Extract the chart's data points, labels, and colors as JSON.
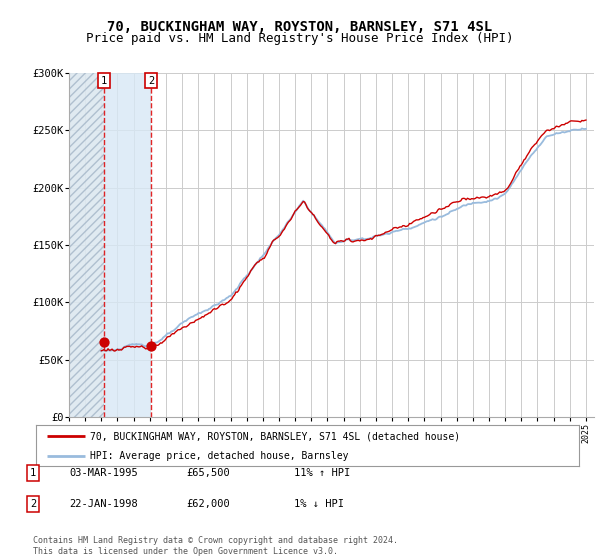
{
  "title": "70, BUCKINGHAM WAY, ROYSTON, BARNSLEY, S71 4SL",
  "subtitle": "Price paid vs. HM Land Registry's House Price Index (HPI)",
  "ylim": [
    0,
    300000
  ],
  "yticks": [
    0,
    50000,
    100000,
    150000,
    200000,
    250000,
    300000
  ],
  "ytick_labels": [
    "£0",
    "£50K",
    "£100K",
    "£150K",
    "£200K",
    "£250K",
    "£300K"
  ],
  "xlim_start": 1993.0,
  "xlim_end": 2025.5,
  "sale1": {
    "date_num": 1995.17,
    "price": 65500,
    "label": "1",
    "hpi_pct": "11% ↑ HPI",
    "date_str": "03-MAR-1995"
  },
  "sale2": {
    "date_num": 1998.07,
    "price": 62000,
    "label": "2",
    "hpi_pct": "1% ↓ HPI",
    "date_str": "22-JAN-1998"
  },
  "legend_line1": "70, BUCKINGHAM WAY, ROYSTON, BARNSLEY, S71 4SL (detached house)",
  "legend_line2": "HPI: Average price, detached house, Barnsley",
  "footer": "Contains HM Land Registry data © Crown copyright and database right 2024.\nThis data is licensed under the Open Government Licence v3.0.",
  "hpi_color": "#99bbdd",
  "price_color": "#cc0000",
  "hatch_color": "#ddeeff",
  "bg_color": "#ffffff",
  "grid_color": "#cccccc",
  "title_fontsize": 10,
  "subtitle_fontsize": 9
}
